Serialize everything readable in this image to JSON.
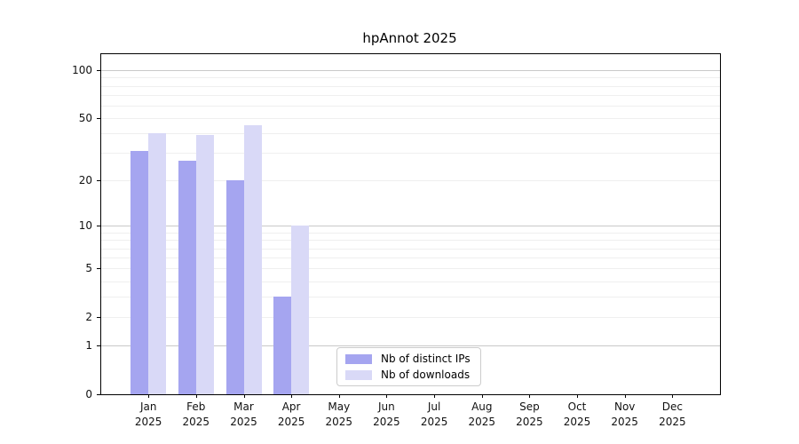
{
  "title": "hpAnnot 2025",
  "chart_data": {
    "type": "bar",
    "title": "hpAnnot 2025",
    "categories": [
      "Jan",
      "Feb",
      "Mar",
      "Apr",
      "May",
      "Jun",
      "Jul",
      "Aug",
      "Sep",
      "Oct",
      "Nov",
      "Dec"
    ],
    "year": "2025",
    "series": [
      {
        "name": "Nb of distinct IPs",
        "color": "#a5a5f0",
        "values": [
          31,
          27,
          20,
          3,
          null,
          null,
          null,
          null,
          null,
          null,
          null,
          null
        ]
      },
      {
        "name": "Nb of downloads",
        "color": "#d9d9f7",
        "values": [
          40,
          39,
          45,
          10,
          null,
          null,
          null,
          null,
          null,
          null,
          null,
          null
        ]
      }
    ],
    "xlabel": "",
    "ylabel": "",
    "yscale": "log(1+y)",
    "ylim": [
      0,
      101
    ],
    "y_ticks": [
      0,
      1,
      2,
      5,
      10,
      20,
      50,
      100
    ],
    "y_gridlines": {
      "major": [
        1,
        10,
        100
      ],
      "minor": [
        2,
        3,
        4,
        5,
        6,
        7,
        8,
        9,
        20,
        30,
        40,
        50,
        60,
        70,
        80,
        90
      ]
    },
    "grid": true,
    "legend_position": "lower-center"
  },
  "colors": {
    "bar_ips": "#a5a5f0",
    "bar_downloads": "#d9d9f7",
    "grid_major": "#c9c9c9",
    "grid_minor": "#efefef",
    "axis": "#000000",
    "legend_border": "#cccccc"
  }
}
